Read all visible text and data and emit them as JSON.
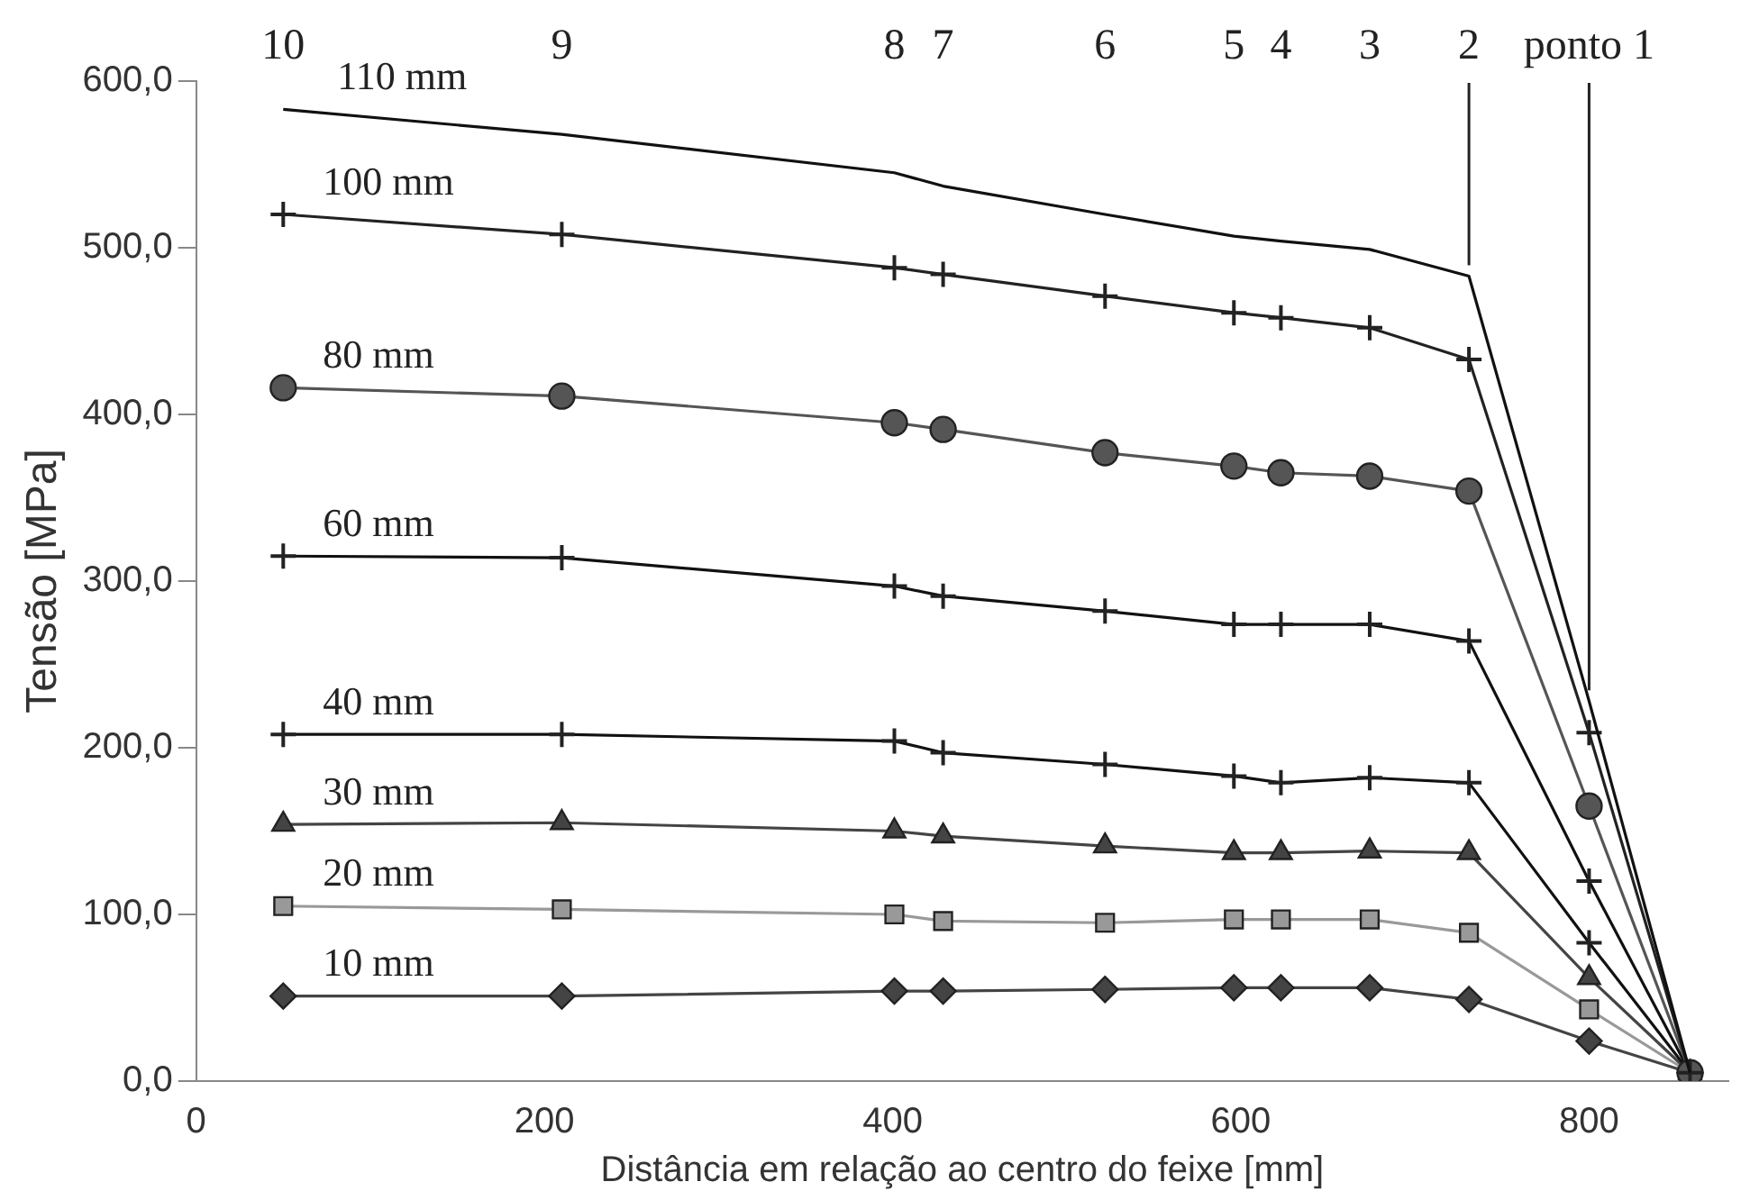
{
  "chart_data": {
    "type": "line",
    "xlabel": "Distância em relação ao centro do feixe [mm]",
    "ylabel": "Tensão [MPa]",
    "x": [
      50,
      210,
      401,
      429,
      522,
      596,
      623,
      674,
      731,
      800,
      858
    ],
    "xlim": [
      0,
      880
    ],
    "xticks": [
      0,
      200,
      400,
      600,
      800
    ],
    "ylim": [
      0,
      600
    ],
    "yticks": [
      {
        "value": 0,
        "label": "0,0"
      },
      {
        "value": 100,
        "label": "100,0"
      },
      {
        "value": 200,
        "label": "200,0"
      },
      {
        "value": 300,
        "label": "300,0"
      },
      {
        "value": 400,
        "label": "400,0"
      },
      {
        "value": 500,
        "label": "500,0"
      },
      {
        "value": 600,
        "label": "600,0"
      }
    ],
    "grid": false,
    "legend": false,
    "line_style": "solid",
    "series": [
      {
        "name": "110 mm",
        "color": "#111111",
        "marker": "none",
        "values": [
          583,
          568,
          545,
          537,
          520,
          507,
          504,
          499,
          483,
          228,
          5
        ]
      },
      {
        "name": "100 mm",
        "color": "#222222",
        "marker": "cross",
        "values": [
          520,
          508,
          488,
          484,
          471,
          461,
          458,
          452,
          433,
          209,
          5
        ]
      },
      {
        "name": "80 mm",
        "color": "#555555",
        "marker": "circle",
        "values": [
          416,
          411,
          395,
          391,
          377,
          369,
          365,
          363,
          354,
          165,
          5
        ]
      },
      {
        "name": "60 mm",
        "color": "#111111",
        "marker": "cross",
        "values": [
          315,
          314,
          297,
          291,
          282,
          274,
          274,
          274,
          264,
          120,
          5
        ]
      },
      {
        "name": "40 mm",
        "color": "#111111",
        "marker": "cross",
        "values": [
          208,
          208,
          204,
          197,
          190,
          183,
          179,
          182,
          179,
          83,
          5
        ]
      },
      {
        "name": "30 mm",
        "color": "#444444",
        "marker": "triangle",
        "values": [
          154,
          155,
          150,
          147,
          141,
          137,
          137,
          138,
          137,
          62,
          5
        ]
      },
      {
        "name": "20 mm",
        "color": "#999999",
        "marker": "square",
        "values": [
          105,
          103,
          100,
          96,
          95,
          97,
          97,
          97,
          89,
          43,
          5
        ]
      },
      {
        "name": "10 mm",
        "color": "#444444",
        "marker": "diamond",
        "values": [
          51,
          51,
          54,
          54,
          55,
          56,
          56,
          56,
          49,
          24,
          5
        ]
      }
    ],
    "annotations": [
      "10",
      "9",
      "8",
      "7",
      "6",
      "5",
      "4",
      "3",
      {
        "text": "2",
        "x": 731,
        "y": 483
      },
      {
        "text": "ponto 1",
        "x": 800,
        "y": 228
      }
    ]
  }
}
